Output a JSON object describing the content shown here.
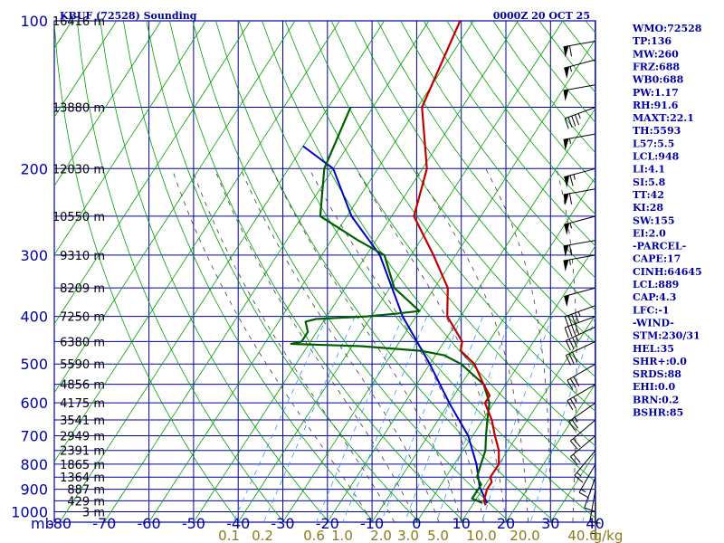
{
  "header": {
    "station": "KBUF (72528) Sounding",
    "time": "0000Z 20 OCT 25"
  },
  "indices": [
    "WMO:72528",
    "TP:136",
    "MW:260",
    "FRZ:688",
    "WB0:688",
    "PW:1.17",
    "RH:91.6",
    "MAXT:22.1",
    "TH:5593",
    "L57:5.5",
    "LCL:948",
    "LI:4.1",
    "SI:5.8",
    "TT:42",
    "KI:28",
    "SW:155",
    "EI:2.0",
    "-PARCEL-",
    "CAPE:17",
    "CINH:64645",
    "LCL:889",
    "CAP:4.3",
    "LFC:-1",
    "-WIND-",
    "STM:230/31",
    "HEL:35",
    "SHR+:0.0",
    "SRDS:88",
    "EHI:0.0",
    "BRN:0.2",
    "BSHR:85"
  ],
  "colors": {
    "grid": "#0000a0",
    "isotherm": "#00a000",
    "dry_adiabat": "#00a000",
    "moist_adiabat": "#404040",
    "mixing_ratio": "#3399ff",
    "temperature": "#c00000",
    "dewpoint": "#006000",
    "parcel": "#0000c0",
    "wind_barb": "#000000"
  },
  "chart_data": {
    "type": "skew-t",
    "x_axis_unit_label": "mb",
    "temperature_ticks": [
      "-80",
      "-70",
      "-60",
      "-50",
      "-40",
      "-30",
      "-20",
      "-10",
      "0",
      "10",
      "20",
      "30",
      "40"
    ],
    "temperature_tick_values": [
      -80,
      -70,
      -60,
      -50,
      -40,
      -30,
      -20,
      -10,
      0,
      10,
      20,
      30,
      40
    ],
    "pressure_levels": [
      {
        "p": 100,
        "label": "100",
        "height": "16416 m"
      },
      {
        "p": 150,
        "label": "",
        "height": "13880 m"
      },
      {
        "p": 200,
        "label": "200",
        "height": "12030 m"
      },
      {
        "p": 250,
        "label": "",
        "height": "10550 m"
      },
      {
        "p": 300,
        "label": "300",
        "height": "9310 m"
      },
      {
        "p": 350,
        "label": "",
        "height": "8209 m"
      },
      {
        "p": 400,
        "label": "400",
        "height": "7250 m"
      },
      {
        "p": 450,
        "label": "",
        "height": "6380 m"
      },
      {
        "p": 500,
        "label": "500",
        "height": "5590 m"
      },
      {
        "p": 550,
        "label": "",
        "height": "4856 m"
      },
      {
        "p": 600,
        "label": "600",
        "height": "4175 m"
      },
      {
        "p": 650,
        "label": "",
        "height": "3541 m"
      },
      {
        "p": 700,
        "label": "700",
        "height": "2949 m"
      },
      {
        "p": 750,
        "label": "",
        "height": "2391 m"
      },
      {
        "p": 800,
        "label": "800",
        "height": "1865 m"
      },
      {
        "p": 850,
        "label": "",
        "height": "1364 m"
      },
      {
        "p": 900,
        "label": "900",
        "height": "887 m"
      },
      {
        "p": 950,
        "label": "",
        "height": "429 m"
      },
      {
        "p": 1000,
        "label": "1000",
        "height": "3 m"
      }
    ],
    "mixing_ratio_labels": [
      "0.1",
      "0.2",
      "0.6",
      "1.0",
      "2.0",
      "3.0",
      "5.0",
      "10.0",
      "20.0",
      "40.0",
      "g/kg"
    ],
    "mixing_ratio_values": [
      0.1,
      0.2,
      0.6,
      1.0,
      2.0,
      3.0,
      5.0,
      10.0,
      20.0,
      40.0
    ],
    "temperature": {
      "name": "Temperature",
      "points": [
        [
          100,
          -63
        ],
        [
          150,
          -59
        ],
        [
          200,
          -49
        ],
        [
          250,
          -45
        ],
        [
          300,
          -35
        ],
        [
          350,
          -27
        ],
        [
          400,
          -23
        ],
        [
          450,
          -16
        ],
        [
          470,
          -15
        ],
        [
          500,
          -10
        ],
        [
          550,
          -5
        ],
        [
          580,
          -2
        ],
        [
          600,
          -2
        ],
        [
          650,
          2
        ],
        [
          700,
          5
        ],
        [
          750,
          8
        ],
        [
          800,
          10
        ],
        [
          850,
          10
        ],
        [
          870,
          11
        ],
        [
          900,
          11
        ],
        [
          950,
          12
        ],
        [
          970,
          13
        ]
      ]
    },
    "dewpoint": {
      "name": "Dewpoint",
      "points": [
        [
          150,
          -75
        ],
        [
          200,
          -72
        ],
        [
          250,
          -66
        ],
        [
          280,
          -54
        ],
        [
          300,
          -46
        ],
        [
          350,
          -39
        ],
        [
          390,
          -30
        ],
        [
          395,
          -35
        ],
        [
          400,
          -41
        ],
        [
          405,
          -52
        ],
        [
          410,
          -54
        ],
        [
          430,
          -52
        ],
        [
          450,
          -52
        ],
        [
          455,
          -54
        ],
        [
          460,
          -38
        ],
        [
          470,
          -24
        ],
        [
          480,
          -18
        ],
        [
          500,
          -13
        ],
        [
          550,
          -5
        ],
        [
          600,
          -1
        ],
        [
          650,
          1
        ],
        [
          700,
          3
        ],
        [
          750,
          5
        ],
        [
          800,
          6
        ],
        [
          850,
          7
        ],
        [
          880,
          9
        ],
        [
          900,
          9
        ],
        [
          940,
          9
        ],
        [
          960,
          12
        ]
      ]
    },
    "parcel": {
      "name": "Parcel",
      "points": [
        [
          180,
          -80
        ],
        [
          200,
          -70
        ],
        [
          250,
          -59
        ],
        [
          300,
          -47
        ],
        [
          400,
          -33
        ],
        [
          500,
          -20
        ],
        [
          600,
          -10
        ],
        [
          700,
          -1
        ],
        [
          800,
          5
        ],
        [
          890,
          9
        ],
        [
          960,
          13
        ]
      ]
    },
    "wind_barbs": [
      {
        "p": 110,
        "dir": 260,
        "spd": 60
      },
      {
        "p": 120,
        "dir": 255,
        "spd": 55
      },
      {
        "p": 135,
        "dir": 260,
        "spd": 50
      },
      {
        "p": 150,
        "dir": 250,
        "spd": 45
      },
      {
        "p": 170,
        "dir": 260,
        "spd": 55
      },
      {
        "p": 200,
        "dir": 255,
        "spd": 65
      },
      {
        "p": 220,
        "dir": 260,
        "spd": 60
      },
      {
        "p": 250,
        "dir": 255,
        "spd": 55
      },
      {
        "p": 280,
        "dir": 260,
        "spd": 60
      },
      {
        "p": 300,
        "dir": 260,
        "spd": 55
      },
      {
        "p": 350,
        "dir": 255,
        "spd": 50
      },
      {
        "p": 380,
        "dir": 250,
        "spd": 45
      },
      {
        "p": 400,
        "dir": 250,
        "spd": 40
      },
      {
        "p": 420,
        "dir": 245,
        "spd": 35
      },
      {
        "p": 450,
        "dir": 245,
        "spd": 30
      },
      {
        "p": 500,
        "dir": 240,
        "spd": 30
      },
      {
        "p": 550,
        "dir": 240,
        "spd": 25
      },
      {
        "p": 600,
        "dir": 235,
        "spd": 25
      },
      {
        "p": 650,
        "dir": 230,
        "spd": 20
      },
      {
        "p": 700,
        "dir": 230,
        "spd": 20
      },
      {
        "p": 750,
        "dir": 220,
        "spd": 15
      },
      {
        "p": 800,
        "dir": 210,
        "spd": 15
      },
      {
        "p": 850,
        "dir": 200,
        "spd": 10
      },
      {
        "p": 900,
        "dir": 190,
        "spd": 10
      },
      {
        "p": 950,
        "dir": 180,
        "spd": 5
      }
    ],
    "grid": true
  }
}
